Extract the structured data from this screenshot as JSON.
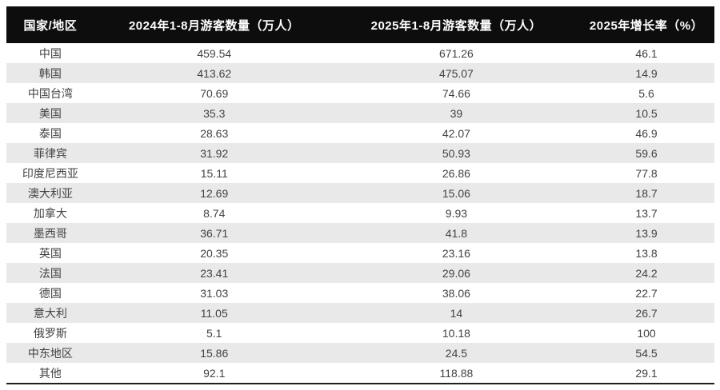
{
  "chart_data": {
    "type": "table",
    "title": "",
    "columns": [
      "国家/地区",
      "2024年1-8月游客数量（万人）",
      "2025年1-8月游客数量（万人）",
      "2025年增长率（%）"
    ],
    "rows": [
      [
        "中国",
        "459.54",
        "671.26",
        "46.1"
      ],
      [
        "韩国",
        "413.62",
        "475.07",
        "14.9"
      ],
      [
        "中国台湾",
        "70.69",
        "74.66",
        "5.6"
      ],
      [
        "美国",
        "35.3",
        "39",
        "10.5"
      ],
      [
        "泰国",
        "28.63",
        "42.07",
        "46.9"
      ],
      [
        "菲律宾",
        "31.92",
        "50.93",
        "59.6"
      ],
      [
        "印度尼西亚",
        "15.11",
        "26.86",
        "77.8"
      ],
      [
        "澳大利亚",
        "12.69",
        "15.06",
        "18.7"
      ],
      [
        "加拿大",
        "8.74",
        "9.93",
        "13.7"
      ],
      [
        "墨西哥",
        "36.71",
        "41.8",
        "13.9"
      ],
      [
        "英国",
        "20.35",
        "23.16",
        "13.8"
      ],
      [
        "法国",
        "23.41",
        "29.06",
        "24.2"
      ],
      [
        "德国",
        "31.03",
        "38.06",
        "22.7"
      ],
      [
        "意大利",
        "11.05",
        "14",
        "26.7"
      ],
      [
        "俄罗斯",
        "5.1",
        "10.18",
        "100"
      ],
      [
        "中东地区",
        "15.86",
        "24.5",
        "54.5"
      ],
      [
        "其他",
        "92.1",
        "118.88",
        "29.1"
      ]
    ]
  },
  "colors": {
    "header_bg": "#0d0d0d",
    "header_text": "#ffffff",
    "row_alt_bg": "#e9e9e9",
    "body_text": "#424242",
    "bottom_border": "#1f1f1f"
  }
}
